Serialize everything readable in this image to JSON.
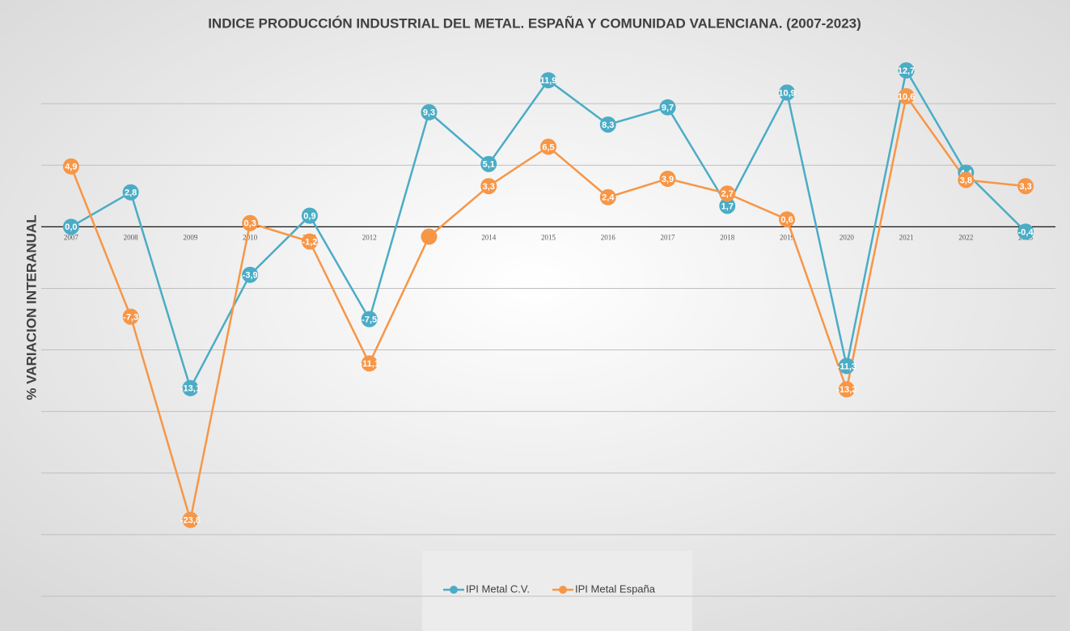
{
  "chart_data": {
    "type": "line",
    "title": "INDICE PRODUCCIÓN INDUSTRIAL DEL METAL. ESPAÑA Y COMUNIDAD VALENCIANA. (2007-2023)",
    "y_label": "% VARIACION INTERANUAL",
    "categories": [
      "2007",
      "2008",
      "2009",
      "2010",
      "2011",
      "2012",
      "2013",
      "2014",
      "2015",
      "2016",
      "2017",
      "2018",
      "2019",
      "2020",
      "2021",
      "2022",
      "2023"
    ],
    "series": [
      {
        "name": "IPI Metal C.V.",
        "color": "#4bacc6",
        "values": [
          0.0,
          2.8,
          -13.1,
          -3.9,
          0.9,
          -7.5,
          9.3,
          5.1,
          11.9,
          8.3,
          9.7,
          1.7,
          10.9,
          -11.3,
          12.7,
          4.4,
          -0.4
        ],
        "value_labels": [
          "0,0",
          "2,8",
          "-13,1",
          "-3,9",
          "0,9",
          "-7,5",
          "9,3",
          "5,1",
          "11,9",
          "8,3",
          "9,7",
          "1,7",
          "10,9",
          "-11,3",
          "12,7",
          "4,4",
          "-0,4"
        ]
      },
      {
        "name": "IPI Metal España",
        "color": "#f79646",
        "values": [
          4.9,
          -7.3,
          -23.8,
          0.3,
          -1.2,
          -11.1,
          -0.8,
          3.3,
          6.5,
          2.4,
          3.9,
          2.7,
          0.6,
          -13.2,
          10.6,
          3.8,
          3.3
        ],
        "value_labels": [
          "4,9",
          "-7,3",
          "-23,8",
          "0,3",
          "-1,2",
          "-11,1",
          null,
          "3,3",
          "6,5",
          "2,4",
          "3,9",
          "2,7",
          "0,6",
          "-13,2",
          "10,6",
          "3,8",
          "3,3"
        ]
      }
    ],
    "ylim": [
      -30,
      15
    ],
    "yticks": [
      -30,
      -25,
      -20,
      -15,
      -10,
      -5,
      0,
      5,
      10
    ],
    "grid": true,
    "legend": "bottom"
  }
}
